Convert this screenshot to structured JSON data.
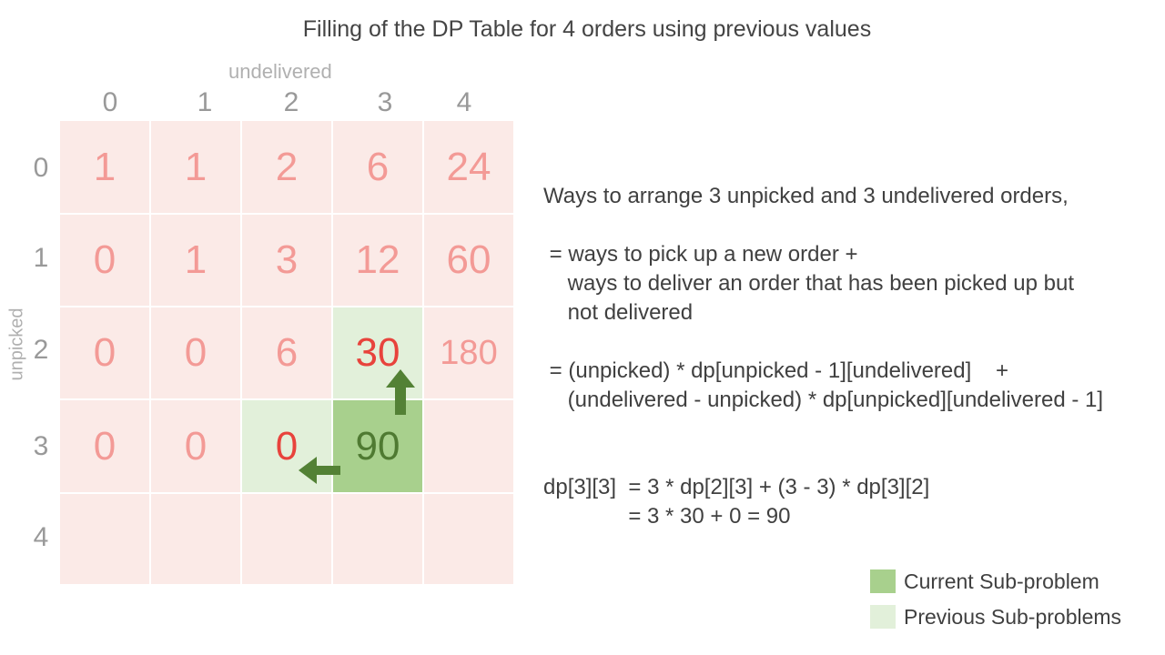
{
  "title": "Filling of the DP Table for 4 orders using previous values",
  "axes": {
    "col_label": "undelivered",
    "row_label": "unpicked",
    "col_headers": [
      "0",
      "1",
      "2",
      "3",
      "4"
    ],
    "row_headers": [
      "0",
      "1",
      "2",
      "3",
      "4"
    ]
  },
  "table": {
    "rows": [
      [
        "1",
        "1",
        "2",
        "6",
        "24"
      ],
      [
        "0",
        "1",
        "3",
        "12",
        "60"
      ],
      [
        "0",
        "0",
        "6",
        "30",
        "180"
      ],
      [
        "0",
        "0",
        "0",
        "90",
        ""
      ],
      [
        "",
        "",
        "",
        "",
        ""
      ]
    ],
    "current_cell": [
      3,
      3
    ],
    "previous_cells": [
      [
        2,
        3
      ],
      [
        3,
        2
      ]
    ]
  },
  "explanation": {
    "line1": "Ways to arrange 3 unpicked and 3 undelivered orders,",
    "line2": " = ways to pick up a new order +",
    "line3": "    ways to deliver an order that has been picked up but",
    "line4": "    not delivered",
    "line5": " = (unpicked) * dp[unpicked - 1][undelivered]    +",
    "line6": "    (undelivered - unpicked) * dp[unpicked][undelivered - 1]",
    "calc1": "dp[3][3]  = 3 * dp[2][3] + (3 - 3) * dp[3][2]",
    "calc2": "              = 3 * 30 + 0 = 90"
  },
  "legend": {
    "current": "Current Sub-problem",
    "previous": "Previous Sub-problems"
  },
  "colors": {
    "cell_default": "#fbeae7",
    "cell_current": "#a8d08d",
    "cell_previous": "#e2f0da",
    "arrow": "#538135",
    "value_default": "#f39a96",
    "value_highlight": "#e8433c"
  }
}
